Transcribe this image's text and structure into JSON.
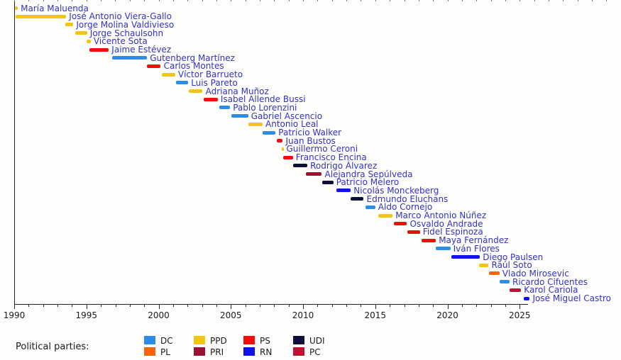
{
  "chart_data": {
    "type": "bar",
    "title": "",
    "xlabel": "",
    "ylabel": "",
    "x_axis": {
      "min": 1990,
      "max": 2026,
      "major_ticks": [
        1990,
        1995,
        2000,
        2005,
        2010,
        2015,
        2020,
        2025
      ],
      "minor_tick_interval": 1,
      "grid": false
    },
    "legend_position": "bottom",
    "parties": {
      "DC": "#2d8ce4",
      "PPD": "#f0c513",
      "PS": "#f20d0d",
      "UDI": "#0e0e38",
      "PL": "#f8650a",
      "PRI": "#9d1133",
      "RN": "#1111ee",
      "PC": "#c40f35"
    },
    "people": [
      {
        "name": "María Maluenda",
        "party": "PPD",
        "start": 1990.05,
        "end": 1990.25
      },
      {
        "name": "José Antonio Viera-Gallo",
        "party": "PPD",
        "start": 1990.1,
        "end": 1993.6
      },
      {
        "name": "Jorge Molina Valdivieso",
        "party": "PPD",
        "start": 1993.55,
        "end": 1994.1
      },
      {
        "name": "Jorge Schaulsohn",
        "party": "PPD",
        "start": 1994.2,
        "end": 1995.05
      },
      {
        "name": "Vicente Sota",
        "party": "PPD",
        "start": 1995.0,
        "end": 1995.3
      },
      {
        "name": "Jaime Estévez",
        "party": "PS",
        "start": 1995.2,
        "end": 1996.55
      },
      {
        "name": "Gutenberg Martínez",
        "party": "DC",
        "start": 1996.8,
        "end": 1999.2
      },
      {
        "name": "Carlos Montes",
        "party": "PS",
        "start": 1999.2,
        "end": 2000.15
      },
      {
        "name": "Víctor Barrueto",
        "party": "PPD",
        "start": 2000.2,
        "end": 2001.15
      },
      {
        "name": "Luis Pareto",
        "party": "DC",
        "start": 2001.2,
        "end": 2002.05
      },
      {
        "name": "Adriana Muñoz",
        "party": "PPD",
        "start": 2002.1,
        "end": 2003.05
      },
      {
        "name": "Isabel Allende Bussi",
        "party": "PS",
        "start": 2003.1,
        "end": 2004.1
      },
      {
        "name": "Pablo Lorenzini",
        "party": "DC",
        "start": 2004.2,
        "end": 2004.95
      },
      {
        "name": "Gabriel Ascencio",
        "party": "DC",
        "start": 2005.05,
        "end": 2006.2
      },
      {
        "name": "Antonio Leal",
        "party": "PPD",
        "start": 2006.2,
        "end": 2007.2
      },
      {
        "name": "Patricio Walker",
        "party": "DC",
        "start": 2007.2,
        "end": 2008.1
      },
      {
        "name": "Juan Bustos",
        "party": "PS",
        "start": 2008.2,
        "end": 2008.6
      },
      {
        "name": "Guillermo Ceroni",
        "party": "PPD",
        "start": 2008.5,
        "end": 2008.65
      },
      {
        "name": "Francisco Encina",
        "party": "PS",
        "start": 2008.6,
        "end": 2009.3
      },
      {
        "name": "Rodrigo Álvarez",
        "party": "UDI",
        "start": 2009.3,
        "end": 2010.3
      },
      {
        "name": "Alejandra Sepúlveda",
        "party": "PRI",
        "start": 2010.2,
        "end": 2011.3
      },
      {
        "name": "Patricio Melero",
        "party": "UDI",
        "start": 2011.3,
        "end": 2012.1
      },
      {
        "name": "Nicolás Monckeberg",
        "party": "RN",
        "start": 2012.3,
        "end": 2013.3
      },
      {
        "name": "Edmundo Eluchans",
        "party": "UDI",
        "start": 2013.3,
        "end": 2014.2
      },
      {
        "name": "Aldo Cornejo",
        "party": "DC",
        "start": 2014.3,
        "end": 2015.0
      },
      {
        "name": "Marco Antonio Núñez",
        "party": "PPD",
        "start": 2015.2,
        "end": 2016.2
      },
      {
        "name": "Osvaldo Andrade",
        "party": "PS",
        "start": 2016.3,
        "end": 2017.2
      },
      {
        "name": "Fidel Espinoza",
        "party": "PS",
        "start": 2017.2,
        "end": 2018.1
      },
      {
        "name": "Maya Fernández",
        "party": "PS",
        "start": 2018.2,
        "end": 2019.2
      },
      {
        "name": "Iván Flores",
        "party": "DC",
        "start": 2019.2,
        "end": 2020.2
      },
      {
        "name": "Diego Paulsen",
        "party": "RN",
        "start": 2020.25,
        "end": 2022.25
      },
      {
        "name": "Raúl Soto",
        "party": "PPD",
        "start": 2022.2,
        "end": 2022.85
      },
      {
        "name": "Vlado Mirosevic",
        "party": "PL",
        "start": 2022.85,
        "end": 2023.6
      },
      {
        "name": "Ricardo Cifuentes",
        "party": "DC",
        "start": 2023.6,
        "end": 2024.3
      },
      {
        "name": "Karol Cariola",
        "party": "PC",
        "start": 2024.3,
        "end": 2025.1
      },
      {
        "name": "José Miguel Castro",
        "party": "RN",
        "start": 2025.3,
        "end": 2025.7
      }
    ],
    "legend": {
      "label": "Political parties:",
      "rows": [
        [
          "DC",
          "PPD",
          "PS",
          "UDI"
        ],
        [
          "PL",
          "PRI",
          "RN",
          "PC"
        ]
      ]
    }
  }
}
